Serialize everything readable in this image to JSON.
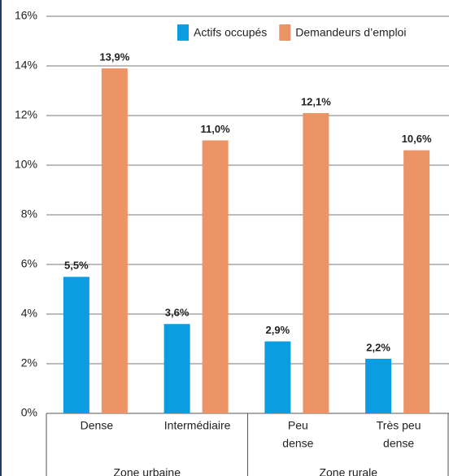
{
  "chart_data": {
    "type": "bar",
    "categories": [
      [
        "Dense"
      ],
      [
        "Intermédiaire"
      ],
      [
        "Peu",
        "dense"
      ],
      [
        "Très peu",
        "dense"
      ]
    ],
    "groups": [
      "Zone urbaine",
      "Zone rurale"
    ],
    "series": [
      {
        "name": "Actifs occupés",
        "color": "#0b9de0",
        "values": [
          5.5,
          3.6,
          2.9,
          2.2
        ],
        "value_labels": [
          "5,5%",
          "3,6%",
          "2,9%",
          "2,2%"
        ]
      },
      {
        "name": "Demandeurs d’emploi",
        "color": "#ec9465",
        "values": [
          13.9,
          11.0,
          12.1,
          10.6
        ],
        "value_labels": [
          "13,9%",
          "11,0%",
          "12,1%",
          "10,6%"
        ]
      }
    ],
    "ylim": [
      0,
      16
    ],
    "yticks": [
      {
        "value": 0,
        "label": "0%"
      },
      {
        "value": 2,
        "label": "2%"
      },
      {
        "value": 4,
        "label": "4%"
      },
      {
        "value": 6,
        "label": "6%"
      },
      {
        "value": 8,
        "label": "8%"
      },
      {
        "value": 10,
        "label": "10%"
      },
      {
        "value": 12,
        "label": "12%"
      },
      {
        "value": 14,
        "label": "14%"
      },
      {
        "value": 16,
        "label": "16%"
      }
    ],
    "grid": true,
    "legend": "top-right"
  }
}
